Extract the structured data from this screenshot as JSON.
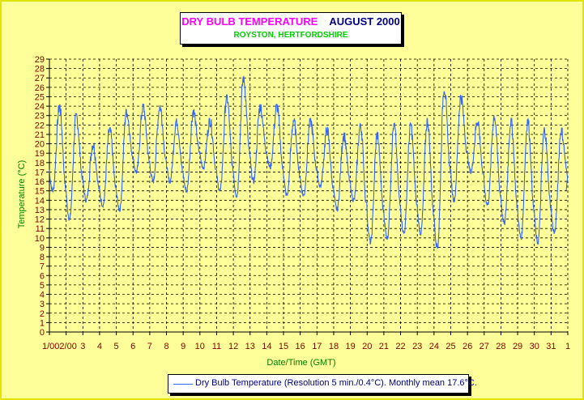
{
  "title": {
    "main": "DRY BULB TEMPERATURE",
    "month": "AUGUST 2000",
    "subtitle": "ROYSTON, HERTFORDSHIRE"
  },
  "colors": {
    "background": "#ffff99",
    "title_main": "#ff00ff",
    "title_month": "#000080",
    "subtitle": "#00cc00",
    "axis_labels": "#800000",
    "axis_title": "#008000",
    "series": "#3366ff"
  },
  "legend": {
    "label": "Dry Bulb Temperature (Resolution 5 min./0.4°C). Monthly mean 17.6°C."
  },
  "chart_data": {
    "type": "line",
    "title": "DRY BULB TEMPERATURE AUGUST 2000",
    "subtitle": "ROYSTON, HERTFORDSHIRE",
    "xlabel": "Date/Time (GMT)",
    "ylabel": "Temperature (°C)",
    "ylim": [
      0,
      29
    ],
    "y_ticks": [
      0,
      1,
      2,
      3,
      4,
      5,
      6,
      7,
      8,
      9,
      10,
      11,
      12,
      13,
      14,
      15,
      16,
      17,
      18,
      19,
      20,
      21,
      22,
      23,
      24,
      25,
      26,
      27,
      28,
      29
    ],
    "x_tick_labels": [
      "1/08/2000",
      "2/08/00",
      "3",
      "4",
      "5",
      "6",
      "7",
      "8",
      "9",
      "10",
      "11",
      "12",
      "13",
      "14",
      "15",
      "16",
      "17",
      "18",
      "19",
      "20",
      "21",
      "22",
      "23",
      "24",
      "25",
      "26",
      "27",
      "28",
      "29",
      "30",
      "31",
      "1"
    ],
    "x_tick_labels_displayed": [
      "1/002/00",
      "3",
      "4",
      "5",
      "6",
      "7",
      "8",
      "9",
      "10",
      "11",
      "12",
      "13",
      "14",
      "15",
      "16",
      "17",
      "18",
      "19",
      "20",
      "21",
      "22",
      "23",
      "24",
      "25",
      "26",
      "27",
      "28",
      "29",
      "30",
      "31",
      "1"
    ],
    "grid": true,
    "legend_position": "bottom",
    "series": [
      {
        "name": "Dry Bulb Temperature (Resolution 5 min./0.4°C). Monthly mean 17.6°C.",
        "daily_min": [
          15.0,
          12.0,
          14.0,
          13.5,
          13.0,
          17.0,
          16.0,
          16.0,
          15.0,
          17.5,
          15.0,
          14.5,
          16.0,
          17.5,
          14.5,
          14.5,
          15.5,
          13.0,
          14.0,
          9.5,
          10.0,
          10.5,
          10.5,
          9.0,
          14.0,
          17.0,
          13.5,
          11.5,
          10.0,
          9.5,
          10.5
        ],
        "daily_max": [
          24.0,
          23.0,
          20.0,
          21.5,
          23.5,
          24.0,
          24.0,
          22.5,
          23.5,
          22.5,
          25.0,
          27.0,
          24.0,
          24.0,
          22.5,
          22.5,
          21.5,
          21.0,
          22.0,
          21.0,
          22.0,
          22.0,
          22.5,
          26.0,
          25.0,
          22.5,
          23.0,
          22.5,
          22.5,
          21.5,
          21.5
        ],
        "end_value": 15.0,
        "mean": 17.6
      }
    ]
  }
}
